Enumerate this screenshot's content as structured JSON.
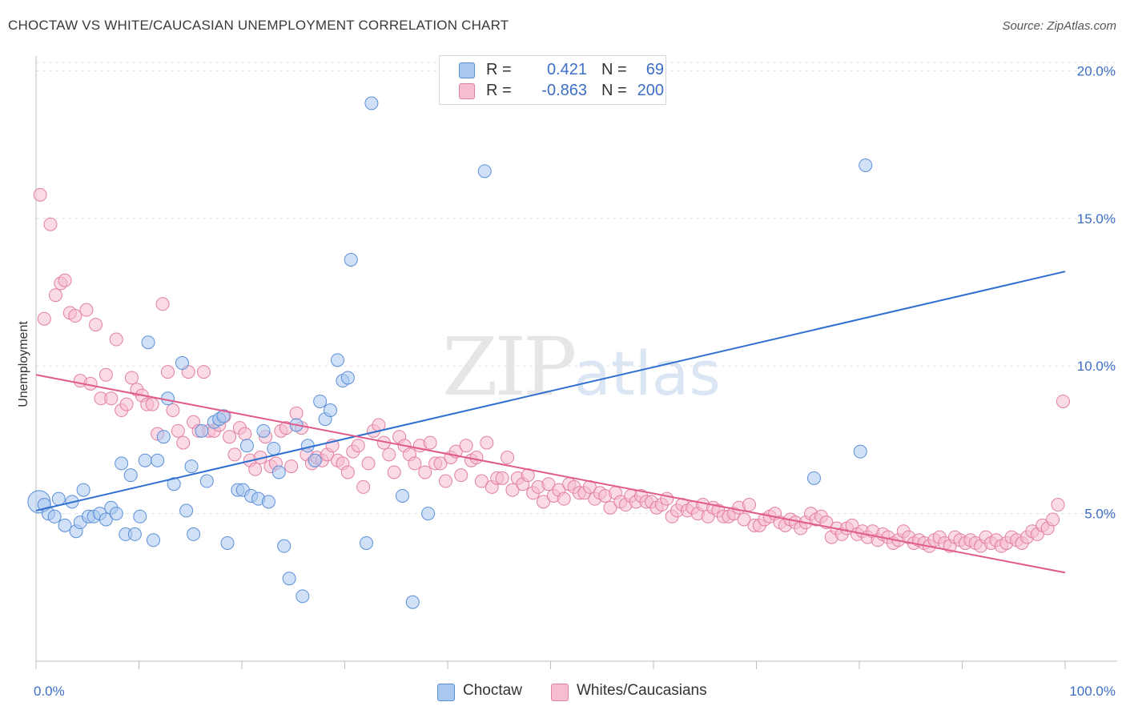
{
  "header": {
    "title": "CHOCTAW VS WHITE/CAUCASIAN UNEMPLOYMENT CORRELATION CHART",
    "source": "Source: ZipAtlas.com"
  },
  "watermark": {
    "zip": "ZIP",
    "atlas": "atlas"
  },
  "legend": {
    "rows": [
      {
        "r_label": "R =",
        "r_value": "0.421",
        "n_label": "N =",
        "n_value": "69",
        "color": "#a9c8f0",
        "border": "#5b8fd8"
      },
      {
        "r_label": "R =",
        "r_value": "-0.863",
        "n_label": "N =",
        "n_value": "200",
        "color": "#f6bcd0",
        "border": "#e27fa2"
      }
    ]
  },
  "bottom_legend": [
    {
      "label": "Choctaw",
      "color": "#a9c8f0",
      "border": "#5b8fd8"
    },
    {
      "label": "Whites/Caucasians",
      "color": "#f6bcd0",
      "border": "#e27fa2"
    }
  ],
  "chart_data": {
    "type": "scatter",
    "title": "CHOCTAW VS WHITE/CAUCASIAN UNEMPLOYMENT CORRELATION CHART",
    "xlabel": "",
    "ylabel": "Unemployment",
    "xlim": [
      0,
      100
    ],
    "ylim": [
      0,
      20.5
    ],
    "x_tick_labels": [
      "0.0%",
      "100.0%"
    ],
    "y_ticks": [
      5,
      10,
      15,
      20
    ],
    "y_tick_labels": [
      "5.0%",
      "10.0%",
      "15.0%",
      "20.0%"
    ],
    "grid": true,
    "colors": {
      "blue_fill": "#a9c8f0",
      "blue_stroke": "#5b8fd8",
      "blue_line": "#2f6fd0",
      "pink_fill": "#f6bcd0",
      "pink_stroke": "#e27fa2",
      "pink_line": "#e05a8c",
      "tick_text": "#3c6fc7"
    },
    "series": [
      {
        "name": "Choctaw",
        "r": 0.421,
        "n": 69,
        "trend": {
          "x": [
            0,
            100
          ],
          "y": [
            5.1,
            13.2
          ]
        },
        "points": [
          [
            0.3,
            5.4
          ],
          [
            0.8,
            5.3
          ],
          [
            1.2,
            5.0
          ],
          [
            1.8,
            4.9
          ],
          [
            2.2,
            5.5
          ],
          [
            2.8,
            4.6
          ],
          [
            3.5,
            5.4
          ],
          [
            3.9,
            4.4
          ],
          [
            4.3,
            4.7
          ],
          [
            4.6,
            5.8
          ],
          [
            5.1,
            4.9
          ],
          [
            5.6,
            4.9
          ],
          [
            6.2,
            5.0
          ],
          [
            6.8,
            4.8
          ],
          [
            7.3,
            5.2
          ],
          [
            7.8,
            5.0
          ],
          [
            8.3,
            6.7
          ],
          [
            8.7,
            4.3
          ],
          [
            9.2,
            6.3
          ],
          [
            9.6,
            4.3
          ],
          [
            10.1,
            4.9
          ],
          [
            10.6,
            6.8
          ],
          [
            10.9,
            10.8
          ],
          [
            11.4,
            4.1
          ],
          [
            11.8,
            6.8
          ],
          [
            12.4,
            7.6
          ],
          [
            12.8,
            8.9
          ],
          [
            13.4,
            6.0
          ],
          [
            14.2,
            10.1
          ],
          [
            14.6,
            5.1
          ],
          [
            15.1,
            6.6
          ],
          [
            15.3,
            4.3
          ],
          [
            16.1,
            7.8
          ],
          [
            16.6,
            6.1
          ],
          [
            17.3,
            8.1
          ],
          [
            17.8,
            8.2
          ],
          [
            18.2,
            8.3
          ],
          [
            18.6,
            4.0
          ],
          [
            19.6,
            5.8
          ],
          [
            20.1,
            5.8
          ],
          [
            20.5,
            7.3
          ],
          [
            20.9,
            5.6
          ],
          [
            21.6,
            5.5
          ],
          [
            22.1,
            7.8
          ],
          [
            22.6,
            5.4
          ],
          [
            23.1,
            7.2
          ],
          [
            23.6,
            6.4
          ],
          [
            24.1,
            3.9
          ],
          [
            24.6,
            2.8
          ],
          [
            25.3,
            8.0
          ],
          [
            25.9,
            2.2
          ],
          [
            26.4,
            7.3
          ],
          [
            27.1,
            6.8
          ],
          [
            27.6,
            8.8
          ],
          [
            28.1,
            8.2
          ],
          [
            28.6,
            8.5
          ],
          [
            29.3,
            10.2
          ],
          [
            29.8,
            9.5
          ],
          [
            30.3,
            9.6
          ],
          [
            30.6,
            13.6
          ],
          [
            32.1,
            4.0
          ],
          [
            32.6,
            18.9
          ],
          [
            35.6,
            5.6
          ],
          [
            36.6,
            2.0
          ],
          [
            38.1,
            5.0
          ],
          [
            43.6,
            16.6
          ],
          [
            75.6,
            6.2
          ],
          [
            80.1,
            7.1
          ],
          [
            80.6,
            16.8
          ]
        ]
      },
      {
        "name": "Whites/Caucasians",
        "r": -0.863,
        "n": 200,
        "trend": {
          "x": [
            0,
            100
          ],
          "y": [
            9.7,
            3.0
          ]
        },
        "points": [
          [
            0.4,
            15.8
          ],
          [
            0.8,
            11.6
          ],
          [
            1.4,
            14.8
          ],
          [
            1.9,
            12.4
          ],
          [
            2.4,
            12.8
          ],
          [
            2.8,
            12.9
          ],
          [
            3.3,
            11.8
          ],
          [
            3.8,
            11.7
          ],
          [
            4.3,
            9.5
          ],
          [
            4.9,
            11.9
          ],
          [
            5.3,
            9.4
          ],
          [
            5.8,
            11.4
          ],
          [
            6.3,
            8.9
          ],
          [
            6.8,
            9.7
          ],
          [
            7.3,
            8.9
          ],
          [
            7.8,
            10.9
          ],
          [
            8.3,
            8.5
          ],
          [
            8.8,
            8.7
          ],
          [
            9.3,
            9.6
          ],
          [
            9.8,
            9.2
          ],
          [
            10.3,
            9.0
          ],
          [
            10.8,
            8.7
          ],
          [
            11.3,
            8.7
          ],
          [
            11.8,
            7.7
          ],
          [
            12.3,
            12.1
          ],
          [
            12.8,
            9.8
          ],
          [
            13.3,
            8.5
          ],
          [
            13.8,
            7.8
          ],
          [
            14.3,
            7.4
          ],
          [
            14.8,
            9.8
          ],
          [
            15.3,
            8.1
          ],
          [
            15.8,
            7.8
          ],
          [
            16.3,
            9.8
          ],
          [
            16.8,
            7.8
          ],
          [
            17.3,
            7.8
          ],
          [
            17.8,
            8.0
          ],
          [
            18.3,
            8.3
          ],
          [
            18.8,
            7.6
          ],
          [
            19.3,
            7.0
          ],
          [
            19.8,
            7.9
          ],
          [
            20.3,
            7.7
          ],
          [
            20.8,
            6.8
          ],
          [
            21.3,
            6.5
          ],
          [
            21.8,
            6.9
          ],
          [
            22.3,
            7.6
          ],
          [
            22.8,
            6.6
          ],
          [
            23.3,
            6.7
          ],
          [
            23.8,
            7.8
          ],
          [
            24.3,
            7.9
          ],
          [
            24.8,
            6.6
          ],
          [
            25.3,
            8.4
          ],
          [
            25.8,
            7.9
          ],
          [
            26.3,
            7.0
          ],
          [
            26.8,
            6.7
          ],
          [
            27.3,
            6.9
          ],
          [
            27.8,
            6.8
          ],
          [
            28.3,
            7.0
          ],
          [
            28.8,
            7.3
          ],
          [
            29.3,
            6.8
          ],
          [
            29.8,
            6.7
          ],
          [
            30.3,
            6.4
          ],
          [
            30.8,
            7.1
          ],
          [
            31.3,
            7.3
          ],
          [
            31.8,
            5.9
          ],
          [
            32.3,
            6.7
          ],
          [
            32.8,
            7.8
          ],
          [
            33.3,
            8.0
          ],
          [
            33.8,
            7.4
          ],
          [
            34.3,
            7.0
          ],
          [
            34.8,
            6.4
          ],
          [
            35.3,
            7.6
          ],
          [
            35.8,
            7.3
          ],
          [
            36.3,
            7.0
          ],
          [
            36.8,
            6.7
          ],
          [
            37.3,
            7.3
          ],
          [
            37.8,
            6.4
          ],
          [
            38.3,
            7.4
          ],
          [
            38.8,
            6.7
          ],
          [
            39.3,
            6.7
          ],
          [
            39.8,
            6.1
          ],
          [
            40.3,
            6.9
          ],
          [
            40.8,
            7.1
          ],
          [
            41.3,
            6.3
          ],
          [
            41.8,
            7.3
          ],
          [
            42.3,
            6.8
          ],
          [
            42.8,
            6.9
          ],
          [
            43.3,
            6.1
          ],
          [
            43.8,
            7.4
          ],
          [
            44.3,
            5.9
          ],
          [
            44.8,
            6.2
          ],
          [
            45.3,
            6.2
          ],
          [
            45.8,
            6.9
          ],
          [
            46.3,
            5.8
          ],
          [
            46.8,
            6.2
          ],
          [
            47.3,
            6.0
          ],
          [
            47.8,
            6.3
          ],
          [
            48.3,
            5.7
          ],
          [
            48.8,
            5.9
          ],
          [
            49.3,
            5.4
          ],
          [
            49.8,
            6.0
          ],
          [
            50.3,
            5.6
          ],
          [
            50.8,
            5.8
          ],
          [
            51.3,
            5.5
          ],
          [
            51.8,
            6.0
          ],
          [
            52.3,
            5.9
          ],
          [
            52.8,
            5.7
          ],
          [
            53.3,
            5.7
          ],
          [
            53.8,
            5.9
          ],
          [
            54.3,
            5.5
          ],
          [
            54.8,
            5.7
          ],
          [
            55.3,
            5.6
          ],
          [
            55.8,
            5.2
          ],
          [
            56.3,
            5.7
          ],
          [
            56.8,
            5.4
          ],
          [
            57.3,
            5.3
          ],
          [
            57.8,
            5.6
          ],
          [
            58.3,
            5.4
          ],
          [
            58.8,
            5.6
          ],
          [
            59.3,
            5.4
          ],
          [
            59.8,
            5.4
          ],
          [
            60.3,
            5.2
          ],
          [
            60.8,
            5.3
          ],
          [
            61.3,
            5.5
          ],
          [
            61.8,
            4.9
          ],
          [
            62.3,
            5.1
          ],
          [
            62.8,
            5.3
          ],
          [
            63.3,
            5.1
          ],
          [
            63.8,
            5.2
          ],
          [
            64.3,
            5.0
          ],
          [
            64.8,
            5.3
          ],
          [
            65.3,
            4.9
          ],
          [
            65.8,
            5.2
          ],
          [
            66.3,
            5.1
          ],
          [
            66.8,
            4.9
          ],
          [
            67.3,
            4.9
          ],
          [
            67.8,
            5.0
          ],
          [
            68.3,
            5.2
          ],
          [
            68.8,
            4.8
          ],
          [
            69.3,
            5.3
          ],
          [
            69.8,
            4.6
          ],
          [
            70.3,
            4.6
          ],
          [
            70.8,
            4.8
          ],
          [
            71.3,
            4.9
          ],
          [
            71.8,
            5.0
          ],
          [
            72.3,
            4.7
          ],
          [
            72.8,
            4.6
          ],
          [
            73.3,
            4.8
          ],
          [
            73.8,
            4.7
          ],
          [
            74.3,
            4.5
          ],
          [
            74.8,
            4.7
          ],
          [
            75.3,
            5.0
          ],
          [
            75.8,
            4.8
          ],
          [
            76.3,
            4.9
          ],
          [
            76.8,
            4.7
          ],
          [
            77.3,
            4.2
          ],
          [
            77.8,
            4.5
          ],
          [
            78.3,
            4.3
          ],
          [
            78.8,
            4.5
          ],
          [
            79.3,
            4.6
          ],
          [
            79.8,
            4.3
          ],
          [
            80.3,
            4.4
          ],
          [
            80.8,
            4.2
          ],
          [
            81.3,
            4.4
          ],
          [
            81.8,
            4.1
          ],
          [
            82.3,
            4.3
          ],
          [
            82.8,
            4.2
          ],
          [
            83.3,
            4.0
          ],
          [
            83.8,
            4.1
          ],
          [
            84.3,
            4.4
          ],
          [
            84.8,
            4.2
          ],
          [
            85.3,
            4.0
          ],
          [
            85.8,
            4.1
          ],
          [
            86.3,
            4.0
          ],
          [
            86.8,
            3.9
          ],
          [
            87.3,
            4.1
          ],
          [
            87.8,
            4.2
          ],
          [
            88.3,
            4.0
          ],
          [
            88.8,
            3.9
          ],
          [
            89.3,
            4.2
          ],
          [
            89.8,
            4.1
          ],
          [
            90.3,
            4.0
          ],
          [
            90.8,
            4.1
          ],
          [
            91.3,
            4.0
          ],
          [
            91.8,
            3.9
          ],
          [
            92.3,
            4.2
          ],
          [
            92.8,
            4.0
          ],
          [
            93.3,
            4.1
          ],
          [
            93.8,
            3.9
          ],
          [
            94.3,
            4.0
          ],
          [
            94.8,
            4.2
          ],
          [
            95.3,
            4.1
          ],
          [
            95.8,
            4.0
          ],
          [
            96.3,
            4.2
          ],
          [
            96.8,
            4.4
          ],
          [
            97.3,
            4.3
          ],
          [
            97.8,
            4.6
          ],
          [
            98.3,
            4.5
          ],
          [
            98.8,
            4.8
          ],
          [
            99.3,
            5.3
          ],
          [
            99.8,
            8.8
          ]
        ]
      }
    ]
  }
}
